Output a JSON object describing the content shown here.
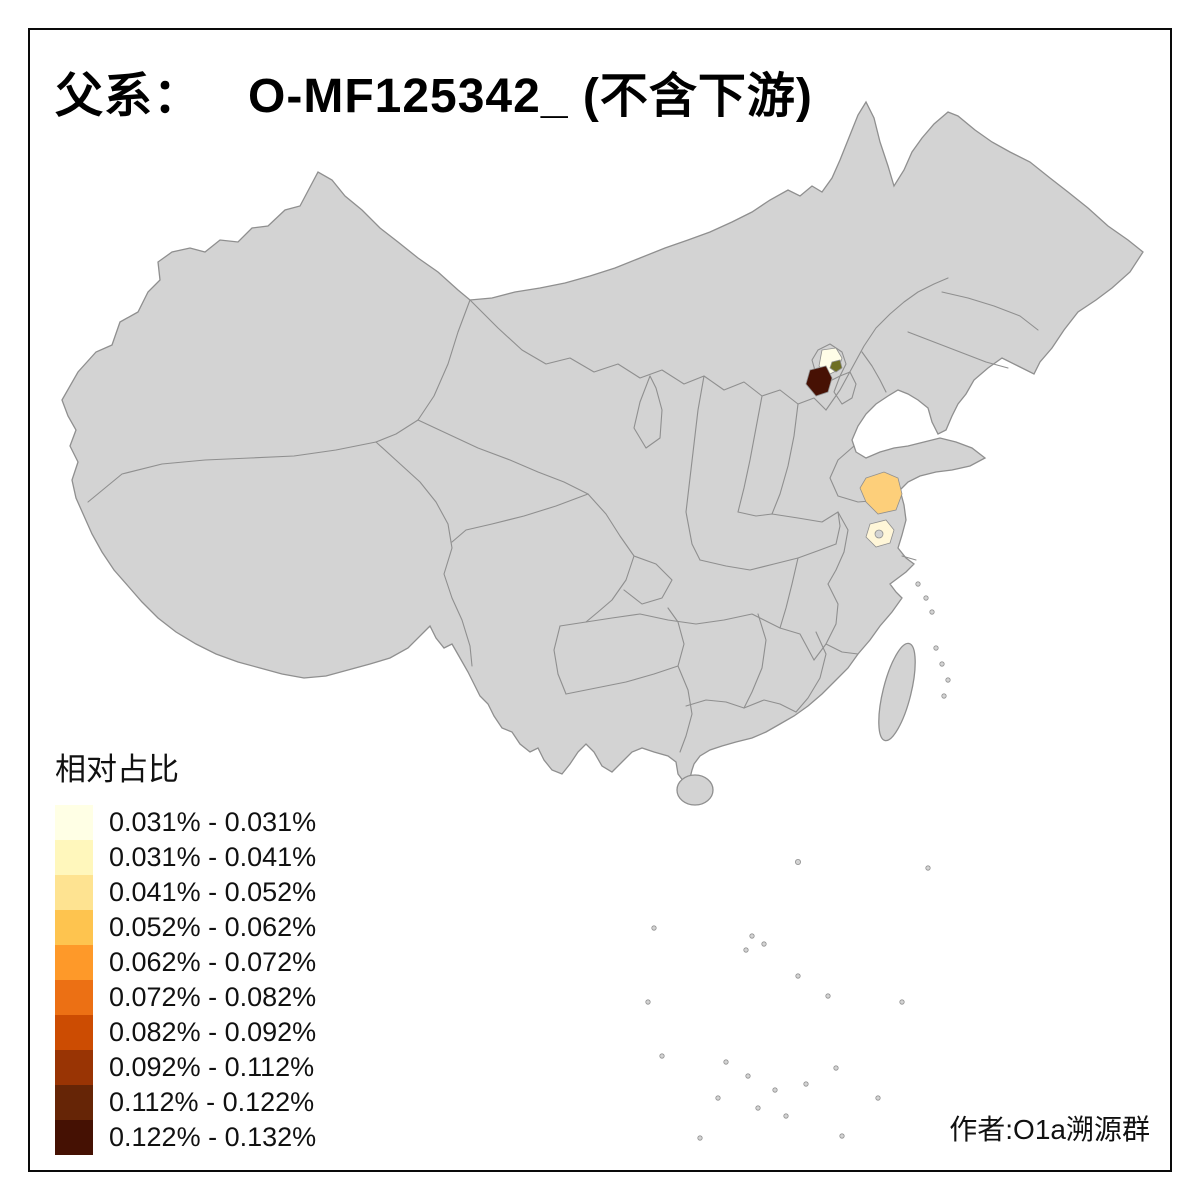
{
  "title": {
    "prefix": "父系：",
    "main": "O-MF125342_ (不含下游)",
    "full": "父系： O-MF125342_ (不含下游)"
  },
  "legend": {
    "title": "相对占比",
    "entries": [
      {
        "label": "0.031% - 0.031%",
        "color": "#FFFFE5"
      },
      {
        "label": "0.031% - 0.041%",
        "color": "#FFF7BC"
      },
      {
        "label": "0.041% - 0.052%",
        "color": "#FEE391"
      },
      {
        "label": "0.052% - 0.062%",
        "color": "#FEC44F"
      },
      {
        "label": "0.062% - 0.072%",
        "color": "#FE9929"
      },
      {
        "label": "0.072% - 0.082%",
        "color": "#EC7014"
      },
      {
        "label": "0.082% - 0.092%",
        "color": "#CC4C02"
      },
      {
        "label": "0.092% - 0.112%",
        "color": "#993404"
      },
      {
        "label": "0.112% - 0.122%",
        "color": "#662506"
      },
      {
        "label": "0.122% - 0.132%",
        "color": "#451103"
      }
    ]
  },
  "credit": "作者:O1a溯源群",
  "map": {
    "base_fill": "#d3d3d3",
    "border_color": "#8f8f8f",
    "background": "#ffffff",
    "highlights": [
      {
        "name": "north-cream-region",
        "color": "#FFFDE7"
      },
      {
        "name": "north-dark-brown-region",
        "color": "#471104"
      },
      {
        "name": "north-olive-speck",
        "color": "#6F6F23"
      },
      {
        "name": "east-orange-region",
        "color": "#FDCF7A"
      },
      {
        "name": "east-cream-region",
        "color": "#FFF6D8"
      }
    ]
  }
}
